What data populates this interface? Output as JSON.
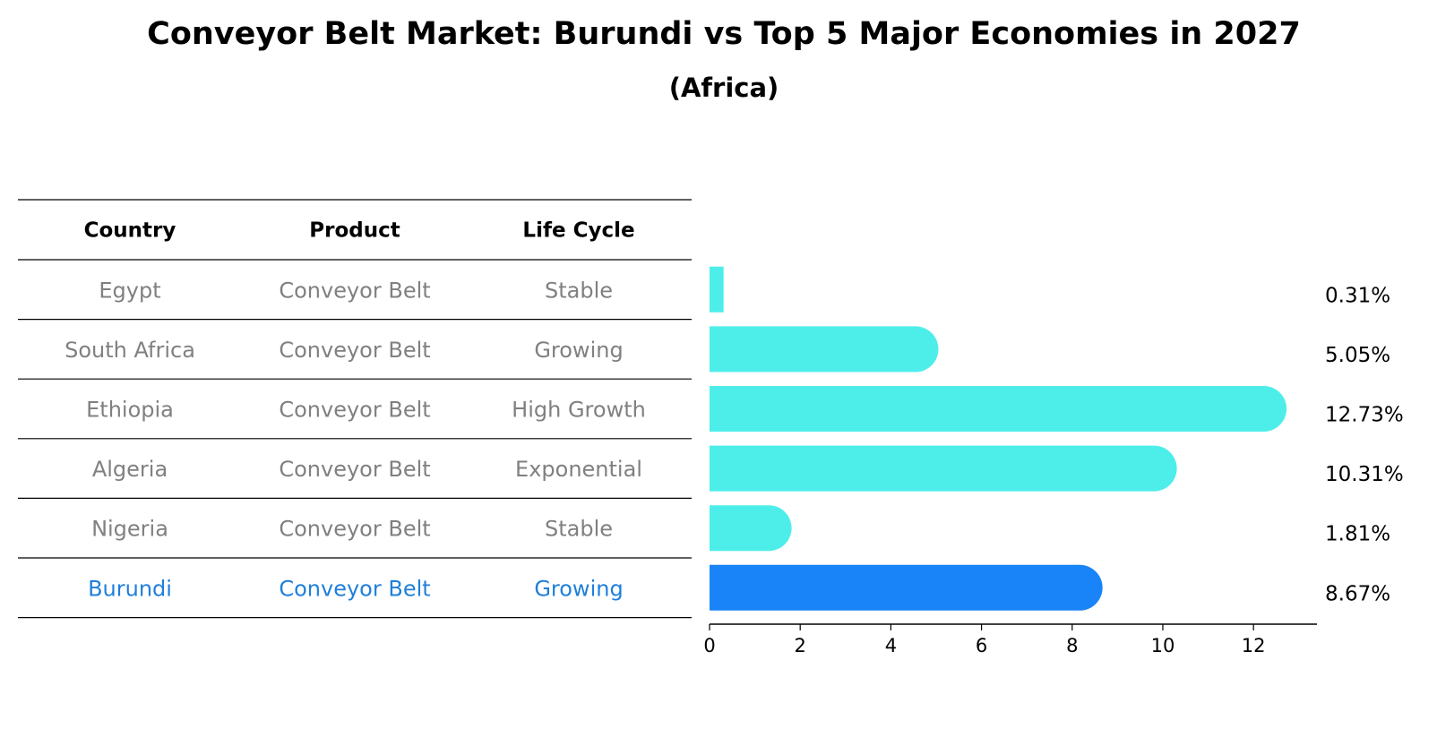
{
  "chart_data": {
    "type": "bar",
    "orientation": "horizontal",
    "title": "Conveyor Belt Market: Burundi vs Top 5 Major Economies in 2027",
    "subtitle": "(Africa)",
    "table": {
      "headers": [
        "Country",
        "Product",
        "Life Cycle"
      ],
      "rows": [
        {
          "country": "Egypt",
          "product": "Conveyor Belt",
          "life_cycle": "Stable",
          "highlight": false
        },
        {
          "country": "South Africa",
          "product": "Conveyor Belt",
          "life_cycle": "Growing",
          "highlight": false
        },
        {
          "country": "Ethiopia",
          "product": "Conveyor Belt",
          "life_cycle": "High Growth",
          "highlight": false
        },
        {
          "country": "Algeria",
          "product": "Conveyor Belt",
          "life_cycle": "Exponential",
          "highlight": false
        },
        {
          "country": "Nigeria",
          "product": "Conveyor Belt",
          "life_cycle": "Stable",
          "highlight": false
        },
        {
          "country": "Burundi",
          "product": "Conveyor Belt",
          "life_cycle": "Growing",
          "highlight": true
        }
      ]
    },
    "categories": [
      "Egypt",
      "South Africa",
      "Ethiopia",
      "Algeria",
      "Nigeria",
      "Burundi"
    ],
    "values": [
      0.31,
      5.05,
      12.73,
      10.31,
      1.81,
      8.67
    ],
    "value_labels": [
      "0.31%",
      "5.05%",
      "12.73%",
      "10.31%",
      "1.81%",
      "8.67%"
    ],
    "xlim": [
      0,
      13.4
    ],
    "xticks": [
      0,
      2,
      4,
      6,
      8,
      10,
      12
    ],
    "colors": {
      "bar": "#4deeea",
      "highlight_bar": "#1984f7",
      "text": "#808080",
      "highlight_text": "#1f7fdb",
      "rule": "#000000"
    }
  }
}
